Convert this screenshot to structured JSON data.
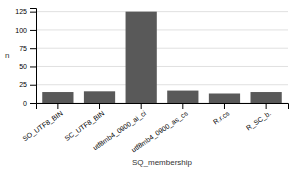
{
  "chart_data": {
    "type": "bar",
    "categories": [
      "SO_UTF8_BIN",
      "SC_UTF8_BIN",
      "utf8mb4_0900_ai_ci",
      "utf8mb4_0900_as_cs",
      "R.r.cs",
      "R_SC_b."
    ],
    "values": [
      15,
      16,
      125,
      17,
      13,
      15
    ],
    "color": "#595959",
    "xlabel": "SQ_membership",
    "ylabel": "n",
    "ylim": [
      0,
      130
    ],
    "yticks": [
      0,
      25,
      50,
      75,
      100,
      125
    ],
    "grid": true
  }
}
